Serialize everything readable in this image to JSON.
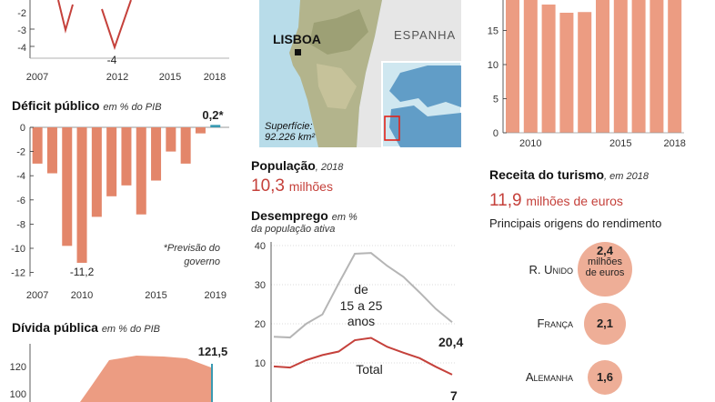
{
  "colors": {
    "bar": "#e3866a",
    "bar_light": "#ec9c82",
    "red": "#c5413b",
    "gray": "#b5b5b5",
    "teal": "#3a9ab2",
    "bubble": "#eeae97"
  },
  "growth": {
    "x_ticks": [
      "2007",
      "2012",
      "2015",
      "2018"
    ],
    "y_ticks": [
      "-2",
      "-3",
      "-4"
    ],
    "min_label": "-4"
  },
  "deficit": {
    "title": "Déficit público",
    "unit": "em % do PIB",
    "note": "*Previsão do governo",
    "last_label": "0,2*",
    "chart_data": {
      "type": "bar",
      "title": "Déficit público",
      "ylabel": "em % do PIB",
      "categories": [
        "2007",
        "2008",
        "2009",
        "2010",
        "2011",
        "2012",
        "2013",
        "2014",
        "2015",
        "2016",
        "2017",
        "2018",
        "2019"
      ],
      "values": [
        -3.0,
        -3.8,
        -9.8,
        -11.2,
        -7.4,
        -5.7,
        -4.8,
        -7.2,
        -4.4,
        -2.0,
        -3.0,
        -0.5,
        0.2
      ],
      "ylim": [
        -12,
        0
      ],
      "y_ticks": [
        "0",
        "-2",
        "-4",
        "-6",
        "-8",
        "-10",
        "-12"
      ],
      "x_ticks": [
        "2007",
        "2010",
        "2015",
        "2019"
      ],
      "min_label": "-11,2"
    }
  },
  "debt": {
    "title": "Dívida pública",
    "unit": "em % do PIB",
    "y_ticks": [
      "120",
      "100"
    ],
    "last_label": "121,5"
  },
  "map": {
    "city": "LISBOA",
    "country": "ESPANHA",
    "area_label": "Superfície:",
    "area_value": "92.226 km²"
  },
  "population": {
    "title": "População",
    "year": "2018",
    "value": "10,3",
    "unit": "milhões"
  },
  "unemployment": {
    "title": "Desemprego",
    "unit_line1": "em %",
    "unit_line2": "da população ativa",
    "youth_label_1": "de",
    "youth_label_2": "15 a 25",
    "youth_label_3": "anos",
    "total_label": "Total",
    "youth_end": "20,4",
    "total_end": "7",
    "chart_data": {
      "type": "line",
      "x": [
        2007,
        2008,
        2009,
        2010,
        2011,
        2012,
        2013,
        2014,
        2015,
        2016,
        2017,
        2018
      ],
      "series": [
        {
          "name": "de 15 a 25 anos",
          "values": [
            16.7,
            16.5,
            20.0,
            22.4,
            30.3,
            37.9,
            38.1,
            34.8,
            32.0,
            28.0,
            23.8,
            20.4
          ]
        },
        {
          "name": "Total",
          "values": [
            9.1,
            8.8,
            10.7,
            12.0,
            12.9,
            15.8,
            16.4,
            14.1,
            12.6,
            11.2,
            9.0,
            7.0
          ]
        }
      ],
      "ylim": [
        0,
        40
      ],
      "y_ticks": [
        "40",
        "30",
        "20",
        "10"
      ]
    }
  },
  "tourism_chart": {
    "chart_data": {
      "type": "bar",
      "categories": [
        "2009",
        "2010",
        "2011",
        "2012",
        "2013",
        "2014",
        "2015",
        "2016",
        "2017",
        "2018"
      ],
      "values": [
        20,
        20,
        18.8,
        17.6,
        17.7,
        20,
        20,
        20,
        20,
        20
      ],
      "ylim": [
        0,
        20
      ],
      "y_ticks": [
        "15",
        "10",
        "5",
        "0"
      ],
      "x_ticks": [
        "2010",
        "2015",
        "2018"
      ]
    }
  },
  "tourism": {
    "title": "Receita do turismo",
    "year": "em 2018",
    "value": "11,9",
    "unit": "milhões de euros",
    "subtitle": "Principais origens do rendimento",
    "origins": [
      {
        "country": "R. Unido",
        "value": "2,4",
        "extra1": "milhões",
        "extra2": "de euros"
      },
      {
        "country": "França",
        "value": "2,1"
      },
      {
        "country": "Alemanha",
        "value": "1,6"
      }
    ]
  }
}
